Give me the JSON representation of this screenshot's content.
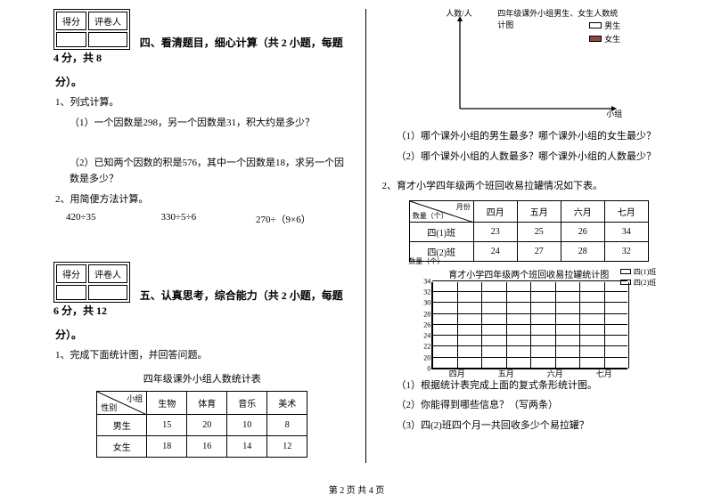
{
  "scorebox": {
    "left": "得分",
    "right": "评卷人"
  },
  "s4": {
    "title": "四、看清题目，细心计算（共 2 小题，每题 4 分，共 8",
    "title2": "分）。",
    "q1": "1、列式计算。",
    "q1a": "（1）一个因数是298，另一个因数是31，积大约是多少？",
    "q1b": "（2）已知两个因数的积是576，其中一个因数是18，求另一个因数是多少？",
    "q2": "2、用简便方法计算。",
    "calc": [
      "420÷35",
      "330÷5÷6",
      "270÷（9×6）"
    ]
  },
  "s5": {
    "title": "五、认真思考，综合能力（共 2 小题，每题 6 分，共 12",
    "title2": "分）。",
    "q1": "1、完成下面统计图，并回答问题。",
    "tableTitle": "四年级课外小组人数统计表",
    "diagTop": "小组",
    "diagBot": "性别",
    "cols": [
      "生物",
      "体育",
      "音乐",
      "美术"
    ],
    "rows": [
      {
        "label": "男生",
        "vals": [
          "15",
          "20",
          "10",
          "8"
        ]
      },
      {
        "label": "女生",
        "vals": [
          "18",
          "16",
          "14",
          "12"
        ]
      }
    ]
  },
  "right": {
    "chart": {
      "ylabel": "人数/人",
      "xlabel": "小组",
      "title": "四年级课外小组男生、女生人数统计图",
      "legend": [
        "男生",
        "女生"
      ],
      "colors": {
        "boy": "#ffffff",
        "girl": "#8b4a3a"
      }
    },
    "sub1": "（1）哪个课外小组的男生最多？哪个课外小组的女生最少？",
    "sub2": "（2）哪个课外小组的人数最多？哪个课外小组的人数最少？",
    "q2": "2、育才小学四年级两个班回收易拉罐情况如下表。",
    "recycle": {
      "diagTop": "月份",
      "diagBot": "数量（个）",
      "cols": [
        "四月",
        "五月",
        "六月",
        "七月"
      ],
      "rows": [
        {
          "label": "四(1)班",
          "vals": [
            "23",
            "25",
            "26",
            "34"
          ]
        },
        {
          "label": "四(2)班",
          "vals": [
            "24",
            "27",
            "28",
            "32"
          ]
        }
      ]
    },
    "grid": {
      "title": "育才小学四年级两个班回收易拉罐统计图",
      "ylabel": "数量（个）",
      "yticks": [
        "34",
        "32",
        "30",
        "28",
        "26",
        "24",
        "22",
        "20",
        "0"
      ],
      "xticks": [
        "四月",
        "五月",
        "六月",
        "七月"
      ],
      "legend": [
        "四(1)班",
        "四(2)班"
      ]
    },
    "subq": [
      "（1）根据统计表完成上面的复式条形统计图。",
      "（2）你能得到哪些信息？（写两条）",
      "（3）四(2)班四个月一共回收多少个易拉罐？"
    ]
  },
  "footer": "第 2 页 共 4 页"
}
